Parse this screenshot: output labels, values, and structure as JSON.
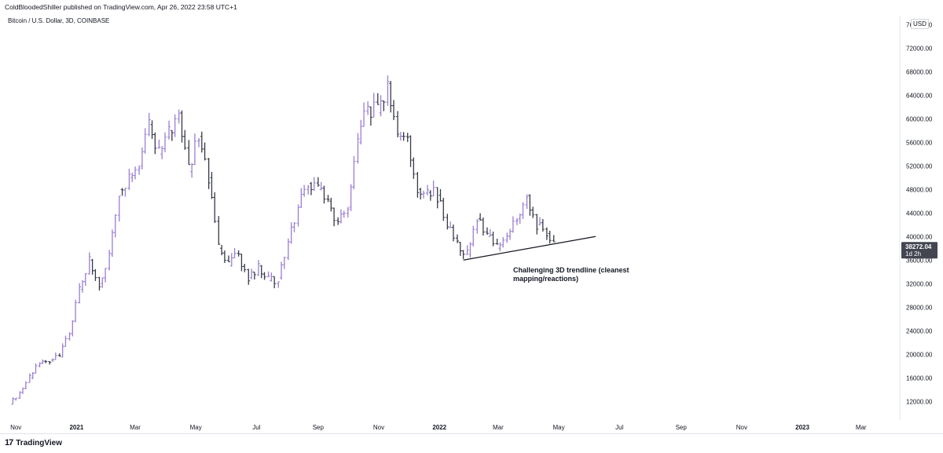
{
  "header": {
    "published": "ColdBloodedShiller published on TradingView.com, Apr 26, 2022 23:58 UTC+1"
  },
  "symbol": "Bitcoin / U.S. Dollar, 3D, COINBASE",
  "currency": "USD",
  "footer": {
    "brand": "TradingView",
    "brand_icon": "tradingview-logo-icon"
  },
  "colors": {
    "up": "#9b7ed3",
    "down": "#363a45",
    "trendline": "#131722",
    "axis_text": "#131722",
    "price_label_bg": "#434651"
  },
  "chart_data": {
    "type": "line",
    "series": [
      {
        "x": [
          "2020-10-26",
          "2020-11-05",
          "2020-11-15",
          "2020-11-25",
          "2020-12-05",
          "2020-12-15",
          "2020-12-25",
          "2021-01-04",
          "2021-01-14",
          "2021-01-24",
          "2021-02-03",
          "2021-02-13",
          "2021-02-23",
          "2021-03-05",
          "2021-03-15",
          "2021-03-25",
          "2021-04-04",
          "2021-04-14",
          "2021-04-24",
          "2021-05-04",
          "2021-05-14",
          "2021-05-24",
          "2021-06-03",
          "2021-06-13",
          "2021-06-23",
          "2021-07-03",
          "2021-07-13",
          "2021-07-23",
          "2021-08-02",
          "2021-08-12",
          "2021-08-22",
          "2021-09-01",
          "2021-09-11",
          "2021-09-21",
          "2021-10-01",
          "2021-10-11",
          "2021-10-21",
          "2021-10-31",
          "2021-11-10",
          "2021-11-20",
          "2021-11-30",
          "2021-12-10",
          "2021-12-20",
          "2021-12-30",
          "2022-01-09",
          "2022-01-19",
          "2022-01-29",
          "2022-02-08",
          "2022-02-18",
          "2022-02-28",
          "2022-03-10",
          "2022-03-20",
          "2022-03-30",
          "2022-04-09",
          "2022-04-19",
          "2022-04-26"
        ],
        "values": [
          11500,
          13500,
          16000,
          18500,
          19000,
          19500,
          23500,
          31000,
          36000,
          32000,
          37000,
          48000,
          50000,
          52000,
          59000,
          54000,
          58000,
          61000,
          51000,
          57000,
          50000,
          38000,
          35000,
          37000,
          33000,
          35000,
          32500,
          33000,
          39000,
          45000,
          49000,
          48000,
          46000,
          42500,
          45000,
          56000,
          62000,
          61000,
          66000,
          57000,
          57000,
          48000,
          47500,
          47000,
          41500,
          39000,
          37000,
          43000,
          40000,
          38000,
          40000,
          43000,
          47000,
          42000,
          40500,
          38272
        ]
      }
    ],
    "trendline": {
      "x": [
        "2022-01-25",
        "2022-06-07"
      ],
      "y": [
        36000,
        40000
      ]
    },
    "annotation": "Challenging 3D trendline (cleanest mapping/reactions)",
    "last_price": {
      "value": "38272.04",
      "countdown": "1d 2h"
    },
    "y_ticks": [
      "76000.00",
      "72000.00",
      "68000.00",
      "64000.00",
      "60000.00",
      "56000.00",
      "52000.00",
      "48000.00",
      "44000.00",
      "40000.00",
      "36000.00",
      "32000.00",
      "28000.00",
      "24000.00",
      "20000.00",
      "16000.00",
      "12000.00"
    ],
    "y_tick_values": [
      76000,
      72000,
      68000,
      64000,
      60000,
      56000,
      52000,
      48000,
      44000,
      40000,
      36000,
      32000,
      28000,
      24000,
      20000,
      16000,
      12000
    ],
    "x_ticks": [
      "Nov",
      "2021",
      "Mar",
      "May",
      "Jul",
      "Sep",
      "Nov",
      "2022",
      "Mar",
      "May",
      "Jul",
      "Sep",
      "Nov",
      "2023",
      "Mar"
    ],
    "x_tick_dates": [
      "2020-11-01",
      "2021-01-01",
      "2021-03-01",
      "2021-05-01",
      "2021-07-01",
      "2021-09-01",
      "2021-11-01",
      "2022-01-01",
      "2022-03-01",
      "2022-05-01",
      "2022-07-01",
      "2022-09-01",
      "2022-11-01",
      "2023-01-01",
      "2023-03-01"
    ],
    "x_range": [
      "2020-10-20",
      "2023-04-05"
    ],
    "ylim": [
      9500,
      77500
    ],
    "grid": false
  }
}
